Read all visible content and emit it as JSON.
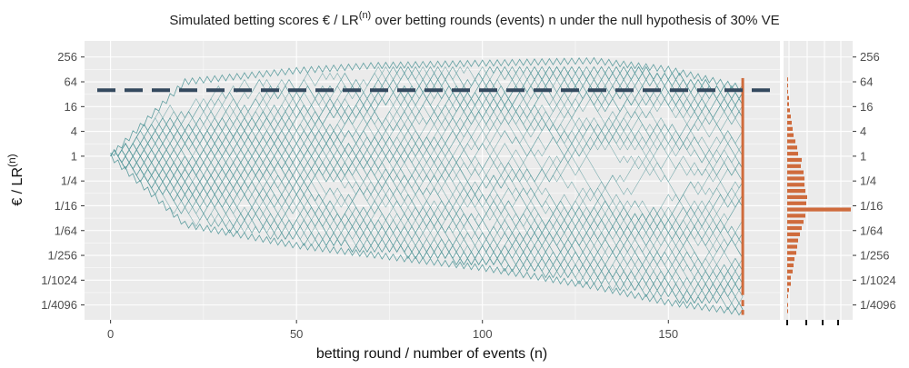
{
  "chart_data": {
    "type": "line",
    "title": "Simulated betting scores € / LR(n) over betting rounds (events) n under the null hypothesis of 30% VE",
    "title_parts": {
      "pre": "Simulated betting scores € / LR",
      "sup": "(n)",
      "post": " over betting rounds (events) n under the null hypothesis of 30% VE"
    },
    "xlabel": "betting round / number of events (n)",
    "ylabel": "€ / LR(n)",
    "ylabel_parts": {
      "pre": "€ / LR",
      "sup": "(n)"
    },
    "y_scale": "log2",
    "xlim": [
      -7,
      180
    ],
    "ylim_log2": [
      -13.2,
      9.3
    ],
    "x_ticks": [
      0,
      50,
      100,
      150
    ],
    "y_ticks": [
      {
        "label": "256",
        "log2": 8
      },
      {
        "label": "64",
        "log2": 6
      },
      {
        "label": "16",
        "log2": 4
      },
      {
        "label": "4",
        "log2": 2
      },
      {
        "label": "1",
        "log2": 0
      },
      {
        "label": "1/4",
        "log2": -2
      },
      {
        "label": "1/16",
        "log2": -4
      },
      {
        "label": "1/64",
        "log2": -6
      },
      {
        "label": "1/256",
        "log2": -8
      },
      {
        "label": "1/1024",
        "log2": -10
      },
      {
        "label": "1/4096",
        "log2": -12
      }
    ],
    "threshold": {
      "value": 40,
      "log2": 5.32,
      "style": "dashed"
    },
    "paths": {
      "n_rounds": 170,
      "start": 1,
      "up_factor": 1.43,
      "down_factor": 0.7,
      "step_log2_up": 0.515,
      "step_log2_down": -0.515,
      "upper_envelope": [
        [
          0,
          0
        ],
        [
          20,
          6.0
        ],
        [
          50,
          6.9
        ],
        [
          70,
          7.3
        ],
        [
          100,
          7.5
        ],
        [
          130,
          7.7
        ],
        [
          150,
          7.0
        ],
        [
          170,
          5.5
        ]
      ],
      "lower_envelope": [
        [
          0,
          0
        ],
        [
          20,
          -5.5
        ],
        [
          50,
          -7.2
        ],
        [
          80,
          -8.3
        ],
        [
          100,
          -9.0
        ],
        [
          130,
          -10.5
        ],
        [
          150,
          -11.8
        ],
        [
          170,
          -12.6
        ]
      ]
    },
    "final_scores_histogram": {
      "orientation": "horizontal",
      "bins": [
        {
          "log2": 6.2,
          "count": 1
        },
        {
          "log2": 5.7,
          "count": 1
        },
        {
          "log2": 5.2,
          "count": 1
        },
        {
          "log2": 4.7,
          "count": 2
        },
        {
          "log2": 4.2,
          "count": 2
        },
        {
          "log2": 3.7,
          "count": 3
        },
        {
          "log2": 3.2,
          "count": 4
        },
        {
          "log2": 2.7,
          "count": 5
        },
        {
          "log2": 2.2,
          "count": 6
        },
        {
          "log2": 1.7,
          "count": 7
        },
        {
          "log2": 1.2,
          "count": 9
        },
        {
          "log2": 0.7,
          "count": 11
        },
        {
          "log2": 0.2,
          "count": 12
        },
        {
          "log2": -0.3,
          "count": 16
        },
        {
          "log2": -0.8,
          "count": 15
        },
        {
          "log2": -1.3,
          "count": 18
        },
        {
          "log2": -1.8,
          "count": 19
        },
        {
          "log2": -2.3,
          "count": 19
        },
        {
          "log2": -2.8,
          "count": 20
        },
        {
          "log2": -3.3,
          "count": 22
        },
        {
          "log2": -3.8,
          "count": 21
        },
        {
          "log2": -4.3,
          "count": 70
        },
        {
          "log2": -4.8,
          "count": 20
        },
        {
          "log2": -5.3,
          "count": 18
        },
        {
          "log2": -5.8,
          "count": 16
        },
        {
          "log2": -6.3,
          "count": 14
        },
        {
          "log2": -6.8,
          "count": 12
        },
        {
          "log2": -7.3,
          "count": 11
        },
        {
          "log2": -7.8,
          "count": 10
        },
        {
          "log2": -8.3,
          "count": 8
        },
        {
          "log2": -8.8,
          "count": 7
        },
        {
          "log2": -9.3,
          "count": 6
        },
        {
          "log2": -9.8,
          "count": 4
        },
        {
          "log2": -10.3,
          "count": 4
        },
        {
          "log2": -10.8,
          "count": 2
        },
        {
          "log2": -11.3,
          "count": 1
        },
        {
          "log2": -12.0,
          "count": 1
        },
        {
          "log2": -12.5,
          "count": 1
        }
      ]
    },
    "colors": {
      "paths": "#5f9ea0",
      "threshold": "#34495e",
      "histogram": "#cf6b3c",
      "panel": "#ebebeb",
      "grid": "#ffffff"
    }
  }
}
